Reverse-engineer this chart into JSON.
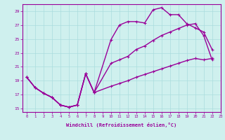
{
  "xlabel": "Windchill (Refroidissement éolien,°C)",
  "bg_color": "#cff0ee",
  "grid_color": "#aadddd",
  "line_color": "#990099",
  "xlim": [
    -0.5,
    23
  ],
  "ylim": [
    14.5,
    30
  ],
  "xticks": [
    0,
    1,
    2,
    3,
    4,
    5,
    6,
    7,
    8,
    9,
    10,
    11,
    12,
    13,
    14,
    15,
    16,
    17,
    18,
    19,
    20,
    21,
    22,
    23
  ],
  "yticks": [
    15,
    17,
    19,
    21,
    23,
    25,
    27,
    29
  ],
  "line1_x": [
    0,
    1,
    2,
    3,
    4,
    5,
    6,
    7,
    8,
    10,
    11,
    12,
    13,
    14,
    15,
    16,
    17,
    18,
    19,
    20,
    21,
    22
  ],
  "line1_y": [
    19.5,
    18.0,
    17.2,
    16.6,
    15.5,
    15.2,
    15.5,
    20.0,
    17.3,
    24.9,
    27.0,
    27.5,
    27.5,
    27.3,
    29.2,
    29.5,
    28.5,
    28.5,
    27.2,
    26.6,
    26.0,
    23.5
  ],
  "line2_x": [
    0,
    1,
    2,
    3,
    4,
    5,
    6,
    7,
    8,
    10,
    11,
    12,
    13,
    14,
    15,
    16,
    17,
    18,
    19,
    20,
    21,
    22
  ],
  "line2_y": [
    19.5,
    18.0,
    17.2,
    16.6,
    15.5,
    15.2,
    15.5,
    20.0,
    17.3,
    21.5,
    22.0,
    22.5,
    23.5,
    24.0,
    24.8,
    25.5,
    26.0,
    26.5,
    27.0,
    27.2,
    25.5,
    22.0
  ],
  "line3_x": [
    0,
    1,
    2,
    3,
    4,
    5,
    6,
    7,
    8,
    10,
    11,
    12,
    13,
    14,
    15,
    16,
    17,
    18,
    19,
    20,
    21,
    22
  ],
  "line3_y": [
    19.5,
    18.0,
    17.2,
    16.6,
    15.5,
    15.2,
    15.5,
    20.0,
    17.3,
    18.2,
    18.6,
    19.0,
    19.5,
    19.9,
    20.3,
    20.7,
    21.1,
    21.5,
    21.9,
    22.2,
    22.0,
    22.2
  ],
  "marker_size": 3,
  "line_width": 1.0
}
